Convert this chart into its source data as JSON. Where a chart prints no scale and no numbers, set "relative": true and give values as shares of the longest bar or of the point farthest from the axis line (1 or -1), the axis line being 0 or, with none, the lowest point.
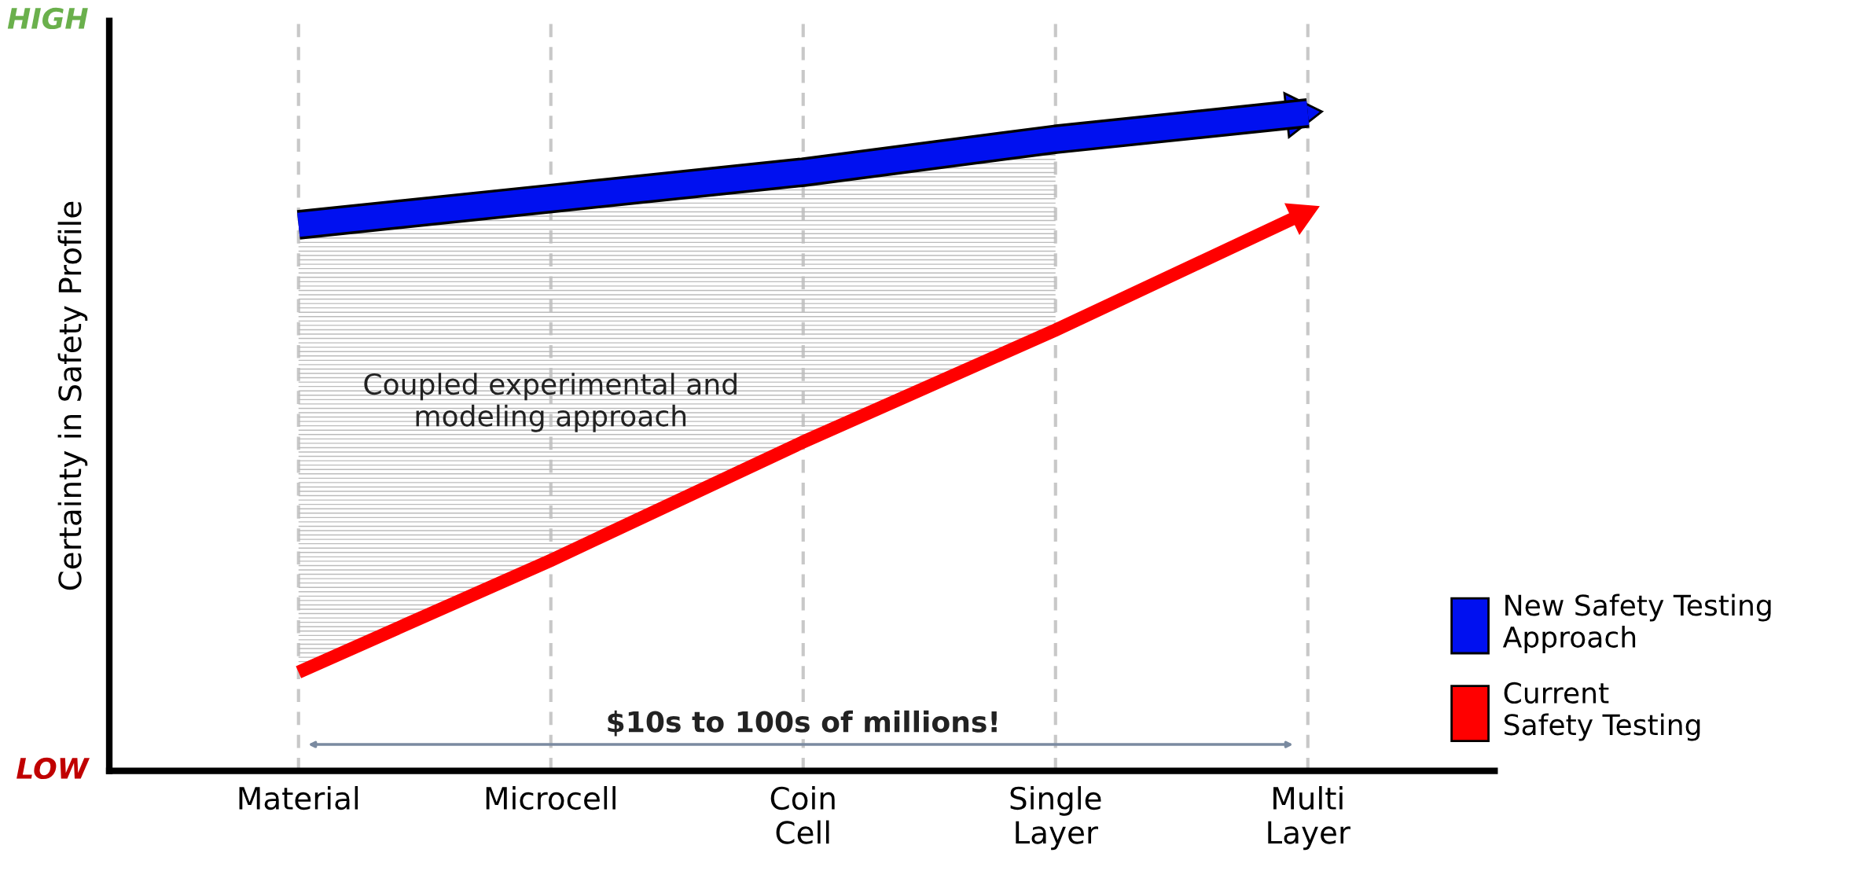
{
  "chart_data": {
    "type": "line",
    "relative": true,
    "ylabel": "Certainty in Safety Profile",
    "categories": [
      "Material",
      "Microcell",
      "Coin\nCell",
      "Single\nLayer",
      "Multi\nLayer"
    ],
    "series": [
      {
        "name": "New Safety Testing\nApproach",
        "color": "#0010f0",
        "values": [
          0.83,
          0.87,
          0.91,
          0.96,
          1.0
        ]
      },
      {
        "name": "Current\nSafety Testing",
        "color": "#ff0000",
        "values": [
          0.15,
          0.32,
          0.5,
          0.67,
          0.85
        ]
      }
    ],
    "annotations": [
      "HIGH",
      "LOW",
      "$10s to 100s of millions!",
      "Coupled experimental and\nmodeling approach"
    ],
    "grid": "x",
    "line_style": "solid",
    "marker": "none",
    "legend": "bottom right"
  }
}
